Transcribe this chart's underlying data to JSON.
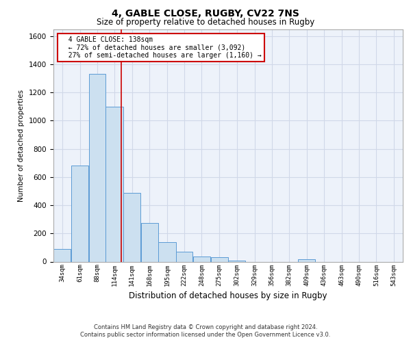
{
  "title_line1": "4, GABLE CLOSE, RUGBY, CV22 7NS",
  "title_line2": "Size of property relative to detached houses in Rugby",
  "xlabel": "Distribution of detached houses by size in Rugby",
  "ylabel": "Number of detached properties",
  "annotation_line1": "4 GABLE CLOSE: 138sqm",
  "annotation_line2": "← 72% of detached houses are smaller (3,092)",
  "annotation_line3": "27% of semi-detached houses are larger (1,160) →",
  "footer_line1": "Contains HM Land Registry data © Crown copyright and database right 2024.",
  "footer_line2": "Contains public sector information licensed under the Open Government Licence v3.0.",
  "bar_edges": [
    34,
    61,
    88,
    114,
    141,
    168,
    195,
    222,
    248,
    275,
    302,
    329,
    356,
    382,
    409,
    436,
    463,
    490,
    516,
    543,
    570
  ],
  "bar_heights": [
    90,
    680,
    1330,
    1100,
    490,
    275,
    140,
    70,
    35,
    30,
    5,
    0,
    0,
    0,
    15,
    0,
    0,
    0,
    0,
    0
  ],
  "bar_color": "#cce0f0",
  "bar_edge_color": "#5b9bd5",
  "grid_color": "#d0d8e8",
  "vline_x": 138,
  "vline_color": "#cc0000",
  "ylim": [
    0,
    1650
  ],
  "yticks": [
    0,
    200,
    400,
    600,
    800,
    1000,
    1200,
    1400,
    1600
  ],
  "annotation_box_color": "#cc0000",
  "bg_color": "#edf2fa"
}
